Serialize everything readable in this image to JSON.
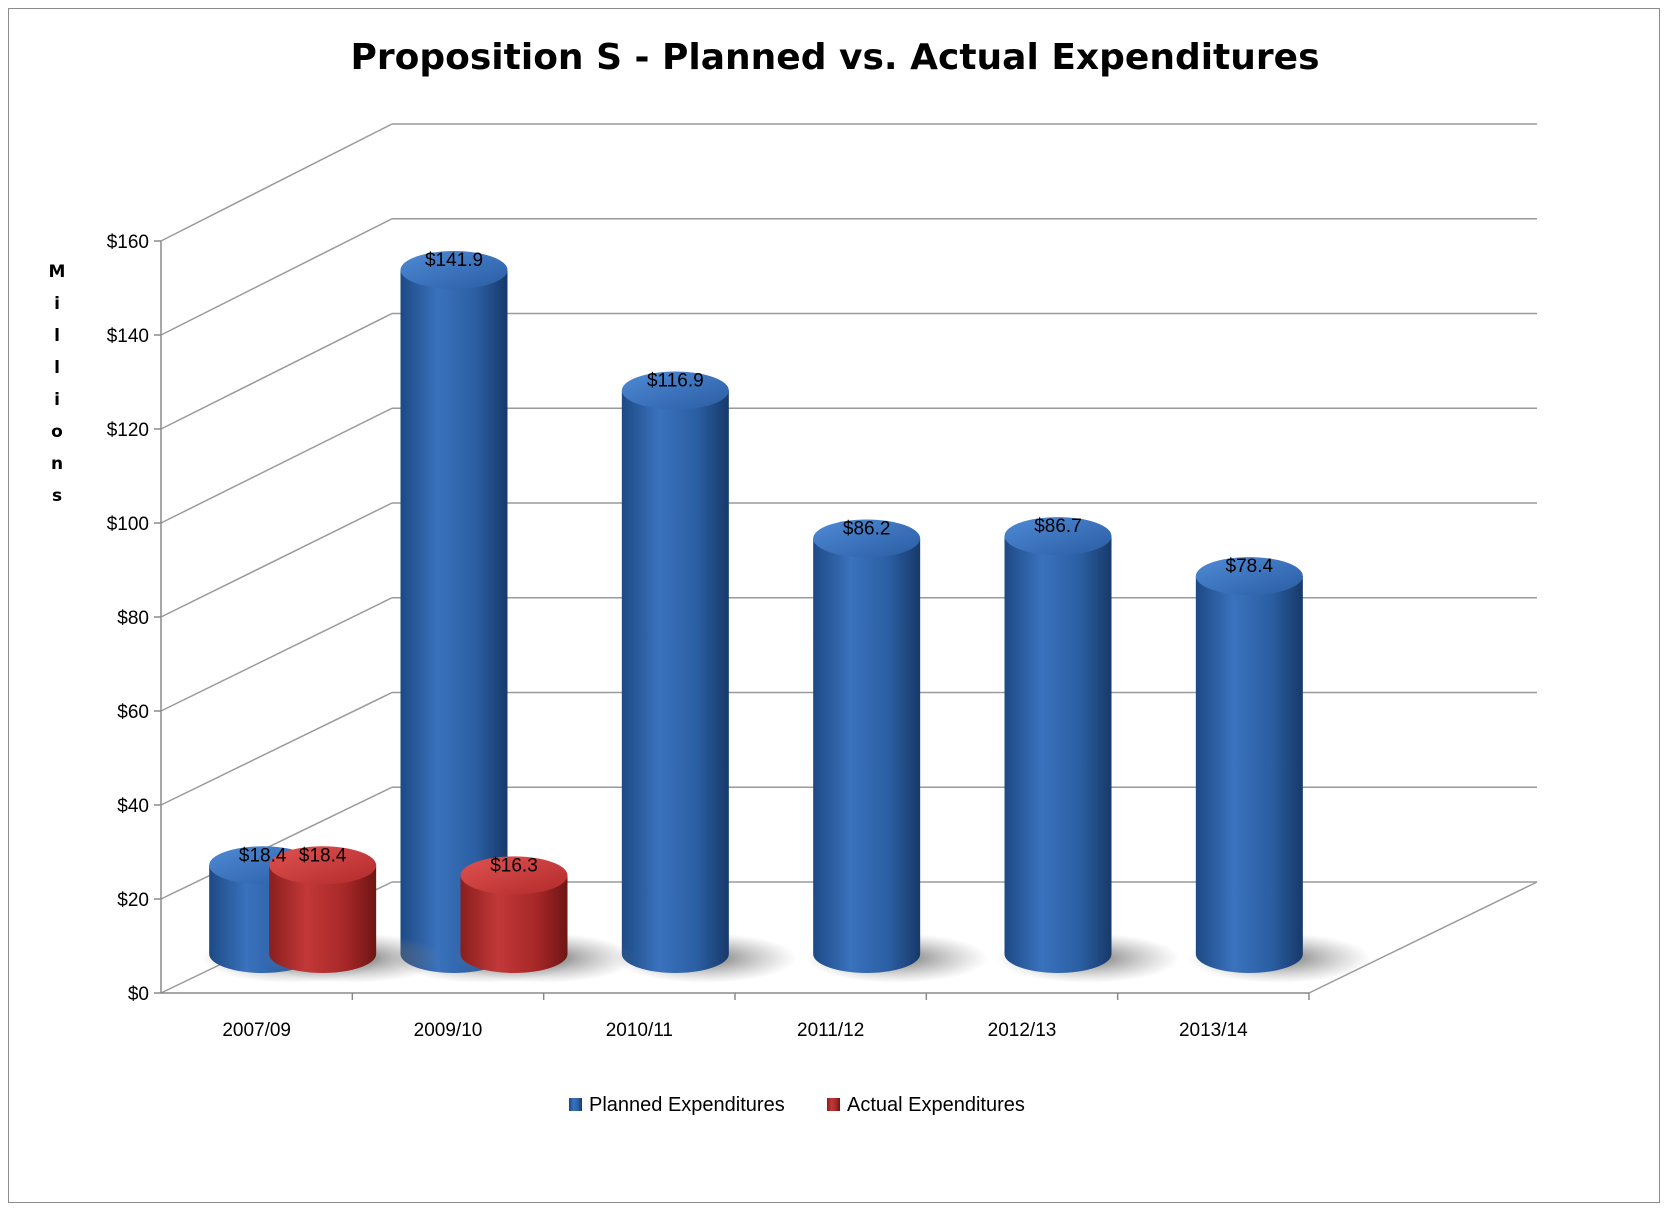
{
  "chart_data": {
    "type": "bar",
    "title": "Proposition S - Planned vs. Actual Expenditures",
    "xlabel": "",
    "ylabel": "Millions",
    "ylim": [
      0,
      160
    ],
    "y_ticks": [
      "$0",
      "$20",
      "$40",
      "$60",
      "$80",
      "$100",
      "$120",
      "$140",
      "$160"
    ],
    "y_tick_values": [
      0,
      20,
      40,
      60,
      80,
      100,
      120,
      140,
      160
    ],
    "categories": [
      "2007/09",
      "2009/10",
      "2010/11",
      "2011/12",
      "2012/13",
      "2013/14"
    ],
    "series": [
      {
        "name": "Planned Expenditures",
        "color": "#2e65ac",
        "values": [
          18.4,
          141.9,
          116.9,
          86.2,
          86.7,
          78.4
        ],
        "labels": [
          "$18.4",
          "$141.9",
          "$116.9",
          "$86.2",
          "$86.7",
          "$78.4"
        ]
      },
      {
        "name": "Actual Expenditures",
        "color": "#b52b2b",
        "values": [
          18.4,
          16.3,
          null,
          null,
          null,
          null
        ],
        "labels": [
          "$18.4",
          "$16.3",
          "",
          "",
          "",
          ""
        ]
      }
    ],
    "grid": true,
    "legend_position": "bottom"
  }
}
